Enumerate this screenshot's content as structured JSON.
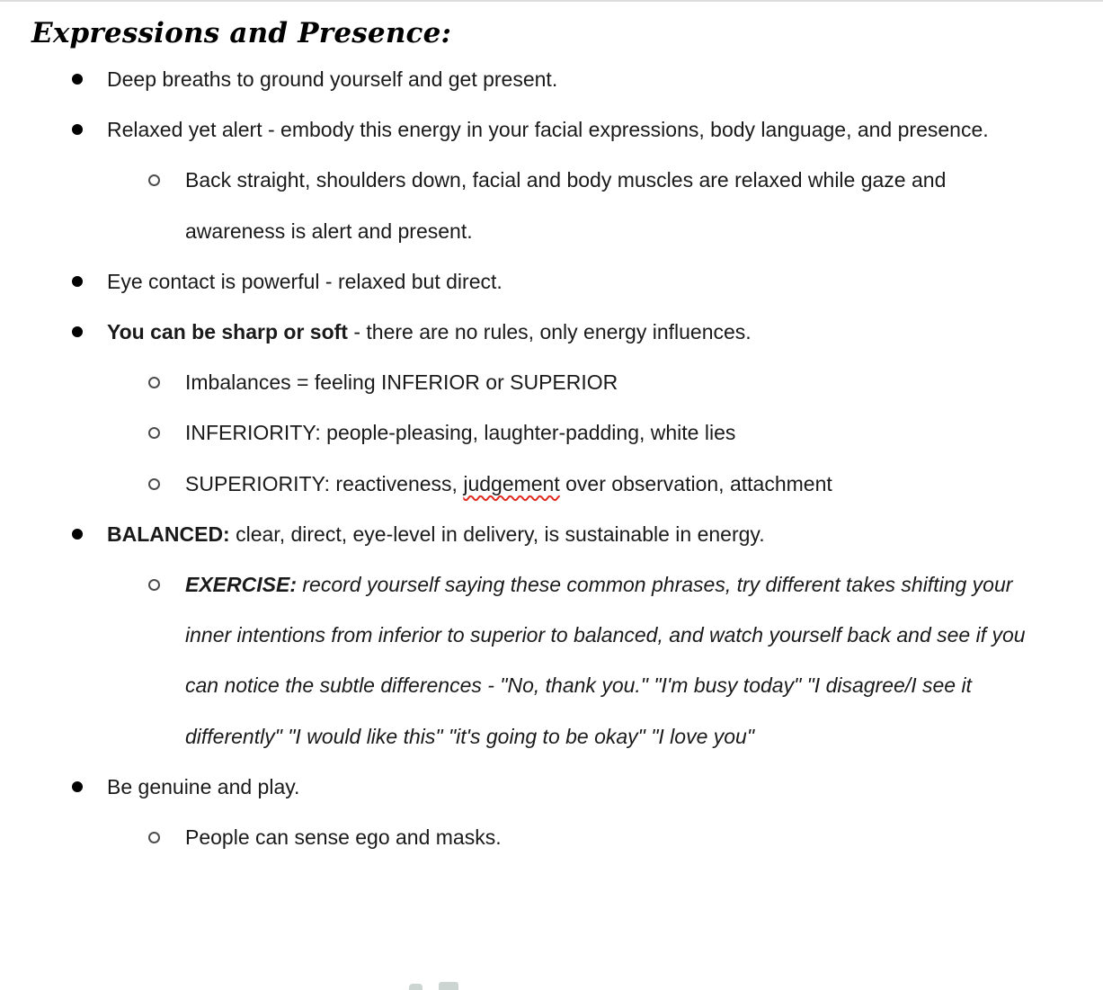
{
  "heading": {
    "text": "Expressions and Presence:"
  },
  "colors": {
    "text": "#1a1a1a",
    "heading": "#000000",
    "bullet_filled": "#000000",
    "bullet_hollow": "#4d4d4d",
    "spellcheck_red": "#e02b20",
    "top_border": "#dcdcdc",
    "fragment": "#ccd5d2",
    "page_bg": "#ffffff"
  },
  "bullets": {
    "level1_glyph": "filled-circle",
    "level2_glyph": "hollow-circle"
  },
  "spellcheck": {
    "flagged_word": "judgement"
  },
  "list": {
    "items": [
      {
        "level": 1,
        "runs": [
          {
            "text": "Deep breaths to ground yourself and get present."
          }
        ]
      },
      {
        "level": 1,
        "runs": [
          {
            "text": "Relaxed yet alert - embody this energy in your facial expressions, body language, and presence."
          }
        ]
      },
      {
        "level": 2,
        "runs": [
          {
            "text": "Back straight, shoulders down, facial and body muscles are relaxed while gaze and awareness is alert and present."
          }
        ]
      },
      {
        "level": 1,
        "runs": [
          {
            "text": "Eye contact is powerful - relaxed but direct."
          }
        ]
      },
      {
        "level": 1,
        "runs": [
          {
            "text": "You can be sharp or soft",
            "bold": true
          },
          {
            "text": " - there are no rules, only energy influences."
          }
        ]
      },
      {
        "level": 2,
        "runs": [
          {
            "text": "Imbalances = feeling INFERIOR or SUPERIOR"
          }
        ]
      },
      {
        "level": 2,
        "runs": [
          {
            "text": "INFERIORITY: people-pleasing, laughter-padding, white lies"
          }
        ]
      },
      {
        "level": 2,
        "runs": [
          {
            "text": "SUPERIORITY: reactiveness, "
          },
          {
            "text": "judgement",
            "spellcheck": true
          },
          {
            "text": " over observation, attachment"
          }
        ]
      },
      {
        "level": 1,
        "runs": [
          {
            "text": "BALANCED:",
            "bold": true
          },
          {
            "text": " clear, direct, eye-level in delivery, is sustainable in energy."
          }
        ]
      },
      {
        "level": 2,
        "runs": [
          {
            "text": "EXERCISE:",
            "bold": true,
            "italic": true
          },
          {
            "text": " record yourself saying these common phrases, try different takes shifting your inner intentions from inferior to superior to balanced, and watch yourself back and see if you can notice the subtle differences - \"No, thank you.\" \"I'm busy today\" \"I disagree/I see it differently\" \"I would like this\" \"it's going to be okay\" \"I love you\"",
            "italic": true
          }
        ]
      },
      {
        "level": 1,
        "runs": [
          {
            "text": "Be genuine and play."
          }
        ]
      },
      {
        "level": 2,
        "runs": [
          {
            "text": "People can sense ego and masks."
          }
        ]
      }
    ]
  }
}
